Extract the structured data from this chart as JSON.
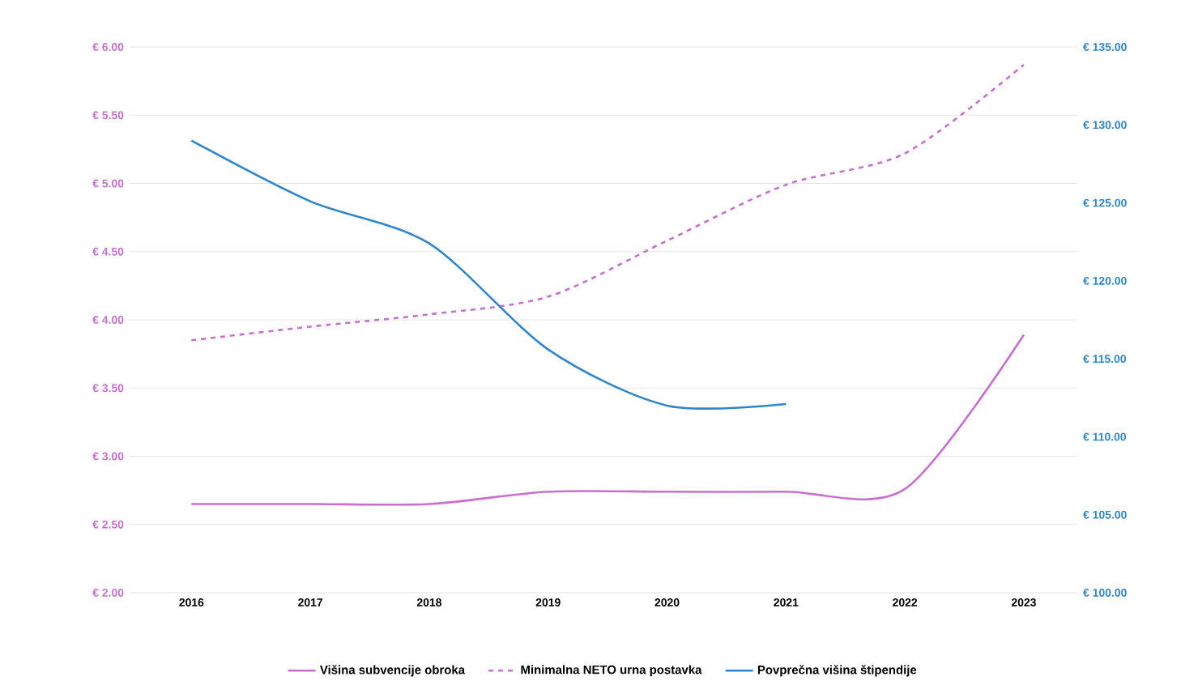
{
  "chart_data": {
    "type": "line",
    "categories": [
      "2016",
      "2017",
      "2018",
      "2019",
      "2020",
      "2021",
      "2022",
      "2023"
    ],
    "series": [
      {
        "name": "Višina subvencije obroka",
        "color": "#c86fd0",
        "line_style": "solid",
        "values": [
          2.65,
          2.65,
          2.65,
          2.74,
          2.74,
          2.74,
          2.76,
          3.89
        ]
      },
      {
        "name": "Minimalna NETO urna postavka",
        "color": "#c86fd0",
        "line_style": "dashed",
        "values": [
          3.85,
          3.95,
          4.04,
          4.17,
          4.58,
          4.99,
          5.22,
          5.87
        ]
      },
      {
        "name": "Povprečna višina štipendije",
        "color": "#2f86cc",
        "line_style": "solid",
        "axis": "y2",
        "values": [
          129.0,
          125.1,
          122.4,
          115.6,
          112.0,
          112.1,
          null,
          null
        ]
      }
    ],
    "ylim": [
      2,
      6
    ],
    "yticks": [
      {
        "value": 2,
        "label": "€ 2.00"
      },
      {
        "value": 2.5,
        "label": "€ 2.50"
      },
      {
        "value": 3,
        "label": "€ 3.00"
      },
      {
        "value": 3.5,
        "label": "€ 3.50"
      },
      {
        "value": 4,
        "label": "€ 4.00"
      },
      {
        "value": 4.5,
        "label": "€ 4.50"
      },
      {
        "value": 5,
        "label": "€ 5.00"
      },
      {
        "value": 5.5,
        "label": "€ 5.50"
      },
      {
        "value": 6,
        "label": "€ 6.00"
      }
    ],
    "y2lim": [
      100,
      135
    ],
    "y2ticks": [
      {
        "value": 100,
        "label": "€ 100.00"
      },
      {
        "value": 105,
        "label": "€ 105.00"
      },
      {
        "value": 110,
        "label": "€ 110.00"
      },
      {
        "value": 115,
        "label": "€ 115.00"
      },
      {
        "value": 120,
        "label": "€ 120.00"
      },
      {
        "value": 125,
        "label": "€ 125.00"
      },
      {
        "value": 130,
        "label": "€ 130.00"
      },
      {
        "value": 135,
        "label": "€ 135.00"
      }
    ],
    "grid": "y",
    "legend": "bottom",
    "marker": "none"
  }
}
